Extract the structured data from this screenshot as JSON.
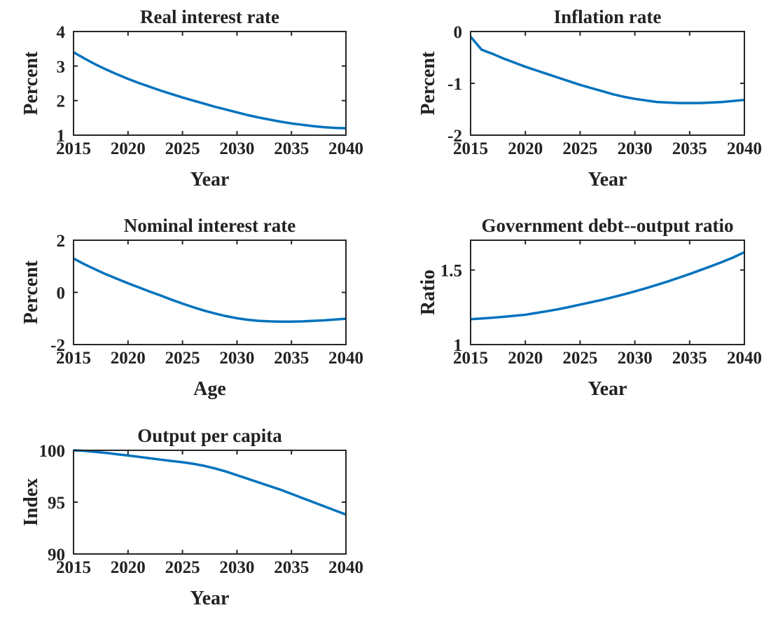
{
  "chart_data": [
    {
      "type": "line",
      "title": "Real interest rate",
      "xlabel": "Year",
      "ylabel": "Percent",
      "x": [
        2015,
        2016,
        2017,
        2018,
        2019,
        2020,
        2021,
        2022,
        2023,
        2024,
        2025,
        2026,
        2027,
        2028,
        2029,
        2030,
        2031,
        2032,
        2033,
        2034,
        2035,
        2036,
        2037,
        2038,
        2039,
        2040
      ],
      "values": [
        3.4,
        3.22,
        3.05,
        2.9,
        2.76,
        2.63,
        2.51,
        2.4,
        2.29,
        2.19,
        2.09,
        2.0,
        1.91,
        1.82,
        1.74,
        1.66,
        1.58,
        1.51,
        1.45,
        1.39,
        1.34,
        1.3,
        1.26,
        1.23,
        1.21,
        1.2
      ],
      "color": "#0072bd",
      "xlim": [
        2015,
        2040
      ],
      "ylim": [
        1,
        4
      ],
      "xticks": [
        2015,
        2020,
        2025,
        2030,
        2035,
        2040
      ],
      "yticks": [
        1,
        2,
        3,
        4
      ]
    },
    {
      "type": "line",
      "title": "Inflation rate",
      "xlabel": "Year",
      "ylabel": "Percent",
      "x": [
        2015,
        2016,
        2017,
        2018,
        2019,
        2020,
        2021,
        2022,
        2023,
        2024,
        2025,
        2026,
        2027,
        2028,
        2029,
        2030,
        2031,
        2032,
        2033,
        2034,
        2035,
        2036,
        2037,
        2038,
        2039,
        2040
      ],
      "values": [
        -0.1,
        -0.35,
        -0.43,
        -0.52,
        -0.6,
        -0.68,
        -0.75,
        -0.82,
        -0.89,
        -0.96,
        -1.03,
        -1.09,
        -1.15,
        -1.21,
        -1.26,
        -1.3,
        -1.33,
        -1.36,
        -1.37,
        -1.38,
        -1.38,
        -1.38,
        -1.37,
        -1.36,
        -1.34,
        -1.32
      ],
      "color": "#0072bd",
      "xlim": [
        2015,
        2040
      ],
      "ylim": [
        -2,
        0
      ],
      "xticks": [
        2015,
        2020,
        2025,
        2030,
        2035,
        2040
      ],
      "yticks": [
        -2,
        -1,
        0
      ]
    },
    {
      "type": "line",
      "title": "Nominal interest rate",
      "xlabel": "Age",
      "ylabel": "Percent",
      "x": [
        2015,
        2016,
        2017,
        2018,
        2019,
        2020,
        2021,
        2022,
        2023,
        2024,
        2025,
        2026,
        2027,
        2028,
        2029,
        2030,
        2031,
        2032,
        2033,
        2034,
        2035,
        2036,
        2037,
        2038,
        2039,
        2040
      ],
      "values": [
        1.3,
        1.08,
        0.88,
        0.69,
        0.52,
        0.35,
        0.19,
        0.03,
        -0.12,
        -0.28,
        -0.43,
        -0.57,
        -0.7,
        -0.81,
        -0.91,
        -0.99,
        -1.05,
        -1.09,
        -1.11,
        -1.12,
        -1.12,
        -1.11,
        -1.09,
        -1.07,
        -1.04,
        -1.01
      ],
      "color": "#0072bd",
      "xlim": [
        2015,
        2040
      ],
      "ylim": [
        -2,
        2
      ],
      "xticks": [
        2015,
        2020,
        2025,
        2030,
        2035,
        2040
      ],
      "yticks": [
        -2,
        0,
        2
      ]
    },
    {
      "type": "line",
      "title": "Government debt--output ratio",
      "xlabel": "Year",
      "ylabel": "Ratio",
      "x": [
        2015,
        2016,
        2017,
        2018,
        2019,
        2020,
        2021,
        2022,
        2023,
        2024,
        2025,
        2026,
        2027,
        2028,
        2029,
        2030,
        2031,
        2032,
        2033,
        2034,
        2035,
        2036,
        2037,
        2038,
        2039,
        2040
      ],
      "values": [
        1.17,
        1.175,
        1.18,
        1.186,
        1.193,
        1.2,
        1.212,
        1.224,
        1.237,
        1.252,
        1.268,
        1.284,
        1.3,
        1.318,
        1.337,
        1.357,
        1.378,
        1.4,
        1.423,
        1.448,
        1.473,
        1.5,
        1.527,
        1.555,
        1.585,
        1.62
      ],
      "color": "#0072bd",
      "xlim": [
        2015,
        2040
      ],
      "ylim": [
        1,
        1.7
      ],
      "xticks": [
        2015,
        2020,
        2025,
        2030,
        2035,
        2040
      ],
      "yticks": [
        1,
        1.5
      ]
    },
    {
      "type": "line",
      "title": "Output per capita",
      "xlabel": "Year",
      "ylabel": "Index",
      "x": [
        2015,
        2016,
        2017,
        2018,
        2019,
        2020,
        2021,
        2022,
        2023,
        2024,
        2025,
        2026,
        2027,
        2028,
        2029,
        2030,
        2031,
        2032,
        2033,
        2034,
        2035,
        2036,
        2037,
        2038,
        2039,
        2040
      ],
      "values": [
        100,
        99.95,
        99.85,
        99.75,
        99.62,
        99.5,
        99.37,
        99.23,
        99.1,
        98.97,
        98.85,
        98.7,
        98.5,
        98.25,
        97.95,
        97.6,
        97.25,
        96.9,
        96.55,
        96.2,
        95.8,
        95.4,
        95.0,
        94.6,
        94.2,
        93.8
      ],
      "color": "#0072bd",
      "xlim": [
        2015,
        2040
      ],
      "ylim": [
        90,
        100
      ],
      "xticks": [
        2015,
        2020,
        2025,
        2030,
        2035,
        2040
      ],
      "yticks": [
        90,
        95,
        100
      ]
    }
  ]
}
